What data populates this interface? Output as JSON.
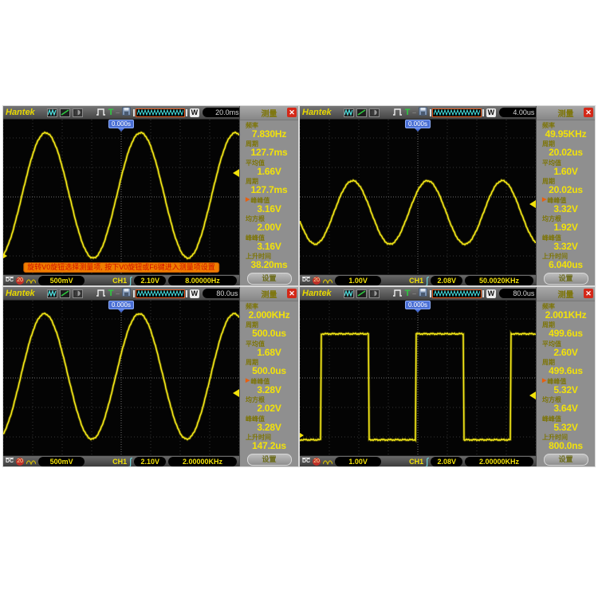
{
  "page": {
    "background": "#ffffff",
    "description_trigger_position": "0.000s"
  },
  "shared": {
    "brand": "Hantek",
    "measure_title": "测量",
    "close_glyph": "✕",
    "settings_label": "设置",
    "memory_window_letter": "W",
    "trigger_letter": "T",
    "trigger_position_label": "0.000s",
    "coupling_label": "DC",
    "bandwidth_limit_label": "20",
    "channel_label": "CH1",
    "colors": {
      "trace": "#f2e40c",
      "panel_gray": "#8f8f8f",
      "value_yellow": "#f2e20a",
      "label_olive": "#7d7508",
      "banner_orange": "#f07d00",
      "banner_text": "#cf1000",
      "trigger_tag_blue": "#4a6fd4",
      "close_red": "#d42818"
    }
  },
  "scopes": [
    {
      "name": "top-left",
      "timebase": "20.0ms",
      "trigger_position_label": "0.000s",
      "banner": "旋转V0旋钮选择测量项, 按下V0旋钮或F6键进入测量项设置",
      "measure": {
        "title": "测量",
        "settings_label": "设置",
        "items": [
          {
            "label": "频率",
            "value": "7.830Hz"
          },
          {
            "label": "周期",
            "value": "127.7ms"
          },
          {
            "label": "平均值",
            "value": "1.66V"
          },
          {
            "label": "周期",
            "value": "127.7ms"
          },
          {
            "label": "峰峰值",
            "value": "3.16V",
            "selected": true
          },
          {
            "label": "均方根",
            "value": "2.00V"
          },
          {
            "label": "峰峰值",
            "value": "3.16V"
          },
          {
            "label": "上升时间",
            "value": "38.20ms"
          }
        ]
      },
      "status": {
        "coupling": "DC",
        "bandwidth": "20",
        "volts_div": "500mV",
        "channel": "CH1",
        "trigger_level": "2.10V",
        "freq_counter": "8.00000Hz"
      }
    },
    {
      "name": "top-right",
      "timebase": "4.00us",
      "trigger_position_label": "0.000s",
      "measure": {
        "title": "测量",
        "settings_label": "设置",
        "items": [
          {
            "label": "频率",
            "value": "49.95KHz"
          },
          {
            "label": "周期",
            "value": "20.02us"
          },
          {
            "label": "平均值",
            "value": "1.60V"
          },
          {
            "label": "周期",
            "value": "20.02us"
          },
          {
            "label": "峰峰值",
            "value": "3.32V",
            "selected": true
          },
          {
            "label": "均方根",
            "value": "1.92V"
          },
          {
            "label": "峰峰值",
            "value": "3.32V"
          },
          {
            "label": "上升时间",
            "value": "6.040us"
          }
        ]
      },
      "status": {
        "coupling": "DC",
        "bandwidth": "20",
        "volts_div": "1.00V",
        "channel": "CH1",
        "trigger_level": "2.08V",
        "freq_counter": "50.0020KHz"
      }
    },
    {
      "name": "bottom-left",
      "timebase": "80.0us",
      "trigger_position_label": "0.000s",
      "measure": {
        "title": "测量",
        "settings_label": "设置",
        "items": [
          {
            "label": "频率",
            "value": "2.000KHz"
          },
          {
            "label": "周期",
            "value": "500.0us"
          },
          {
            "label": "平均值",
            "value": "1.68V"
          },
          {
            "label": "周期",
            "value": "500.0us"
          },
          {
            "label": "峰峰值",
            "value": "3.28V",
            "selected": true
          },
          {
            "label": "均方根",
            "value": "2.02V"
          },
          {
            "label": "峰峰值",
            "value": "3.28V"
          },
          {
            "label": "上升时间",
            "value": "147.2us"
          }
        ]
      },
      "status": {
        "coupling": "DC",
        "bandwidth": "20",
        "volts_div": "500mV",
        "channel": "CH1",
        "trigger_level": "2.10V",
        "freq_counter": "2.00000KHz"
      }
    },
    {
      "name": "bottom-right",
      "timebase": "80.0us",
      "trigger_position_label": "0.000s",
      "measure": {
        "title": "测量",
        "settings_label": "设置",
        "items": [
          {
            "label": "频率",
            "value": "2.001KHz"
          },
          {
            "label": "周期",
            "value": "499.6us"
          },
          {
            "label": "平均值",
            "value": "2.60V"
          },
          {
            "label": "周期",
            "value": "499.6us"
          },
          {
            "label": "峰峰值",
            "value": "5.32V",
            "selected": true
          },
          {
            "label": "均方根",
            "value": "3.64V"
          },
          {
            "label": "峰峰值",
            "value": "5.32V"
          },
          {
            "label": "上升时间",
            "value": "800.0ns"
          }
        ]
      },
      "status": {
        "coupling": "DC",
        "bandwidth": "20",
        "volts_div": "1.00V",
        "channel": "CH1",
        "trigger_level": "2.08V",
        "freq_counter": "2.00000KHz"
      }
    }
  ],
  "chart_data": [
    {
      "type": "line",
      "waveform": "sine",
      "scope": "top-left",
      "signal_frequency": "7.830Hz",
      "vpp": "3.16V",
      "horizontal_scale": "20.0ms/div",
      "vertical_scale": "500mV/div",
      "peak_x": 0.18,
      "period_x": 0.402,
      "center_y": 0.49,
      "amplitude_y": 0.405,
      "trigger_marker_y": 0.345,
      "channel_marker_y": 0.88
    },
    {
      "type": "line",
      "waveform": "sine",
      "scope": "top-right",
      "signal_frequency": "49.95KHz",
      "vpp": "3.32V",
      "horizontal_scale": "4.00us/div",
      "vertical_scale": "1.00V/div",
      "peak_x": 0.224,
      "period_x": 0.317,
      "center_y": 0.6,
      "amplitude_y": 0.205,
      "trigger_marker_y": 0.545,
      "channel_marker_y": null
    },
    {
      "type": "line",
      "waveform": "sine",
      "scope": "bottom-left",
      "signal_frequency": "2.000KHz",
      "vpp": "3.28V",
      "horizontal_scale": "80.0us/div",
      "vertical_scale": "500mV/div",
      "peak_x": 0.175,
      "period_x": 0.402,
      "center_y": 0.49,
      "amplitude_y": 0.405,
      "trigger_marker_y": 0.6,
      "channel_marker_y": null
    },
    {
      "type": "line",
      "waveform": "square",
      "scope": "bottom-right",
      "signal_frequency": "2.001KHz",
      "vpp": "5.32V",
      "horizontal_scale": "80.0us/div",
      "vertical_scale": "1.00V/div",
      "rise_x": 0.088,
      "period_x": 0.402,
      "duty": 0.51,
      "high_y": 0.215,
      "low_y": 0.9,
      "trigger_marker_y": 0.615,
      "channel_marker_y": 0.87
    }
  ]
}
